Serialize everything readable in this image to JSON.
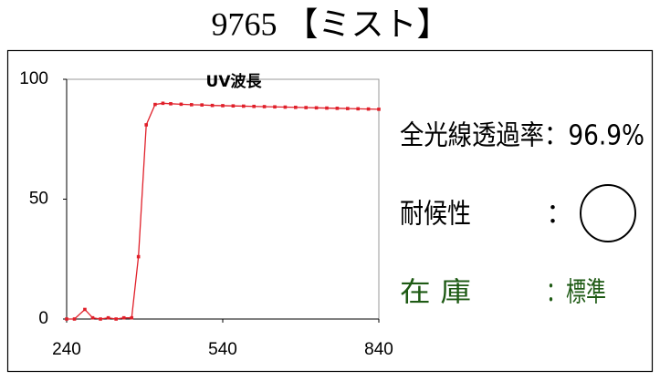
{
  "header": {
    "title": "9765 【ミスト】"
  },
  "chart_data": {
    "type": "line",
    "title": "UV波長",
    "x": [
      240,
      255,
      275,
      290,
      305,
      320,
      335,
      350,
      365,
      378,
      393,
      410,
      425,
      440,
      460,
      480,
      500,
      520,
      540,
      560,
      580,
      600,
      620,
      640,
      660,
      680,
      700,
      720,
      740,
      760,
      780,
      800,
      820,
      840
    ],
    "series": [
      {
        "name": "UV波長",
        "color": "#e0202a",
        "values": [
          0,
          0,
          4,
          0.5,
          0,
          0.5,
          0,
          0.5,
          0.5,
          26,
          81,
          89.5,
          90,
          89.8,
          89.6,
          89.4,
          89.3,
          89.1,
          89,
          88.9,
          88.8,
          88.7,
          88.6,
          88.5,
          88.4,
          88.3,
          88.2,
          88.1,
          88,
          87.9,
          87.8,
          87.7,
          87.6,
          87.5
        ]
      }
    ],
    "xlim": [
      240,
      840
    ],
    "xticks": [
      240,
      540,
      840
    ],
    "ylim": [
      0,
      100
    ],
    "yticks": [
      0,
      50,
      100
    ]
  },
  "specs": {
    "transmittance": "全光線透過率：96.9%",
    "weather_label": "耐候性",
    "weather_colon": "：",
    "stock_label": "在 庫",
    "stock_value": "：標準"
  }
}
